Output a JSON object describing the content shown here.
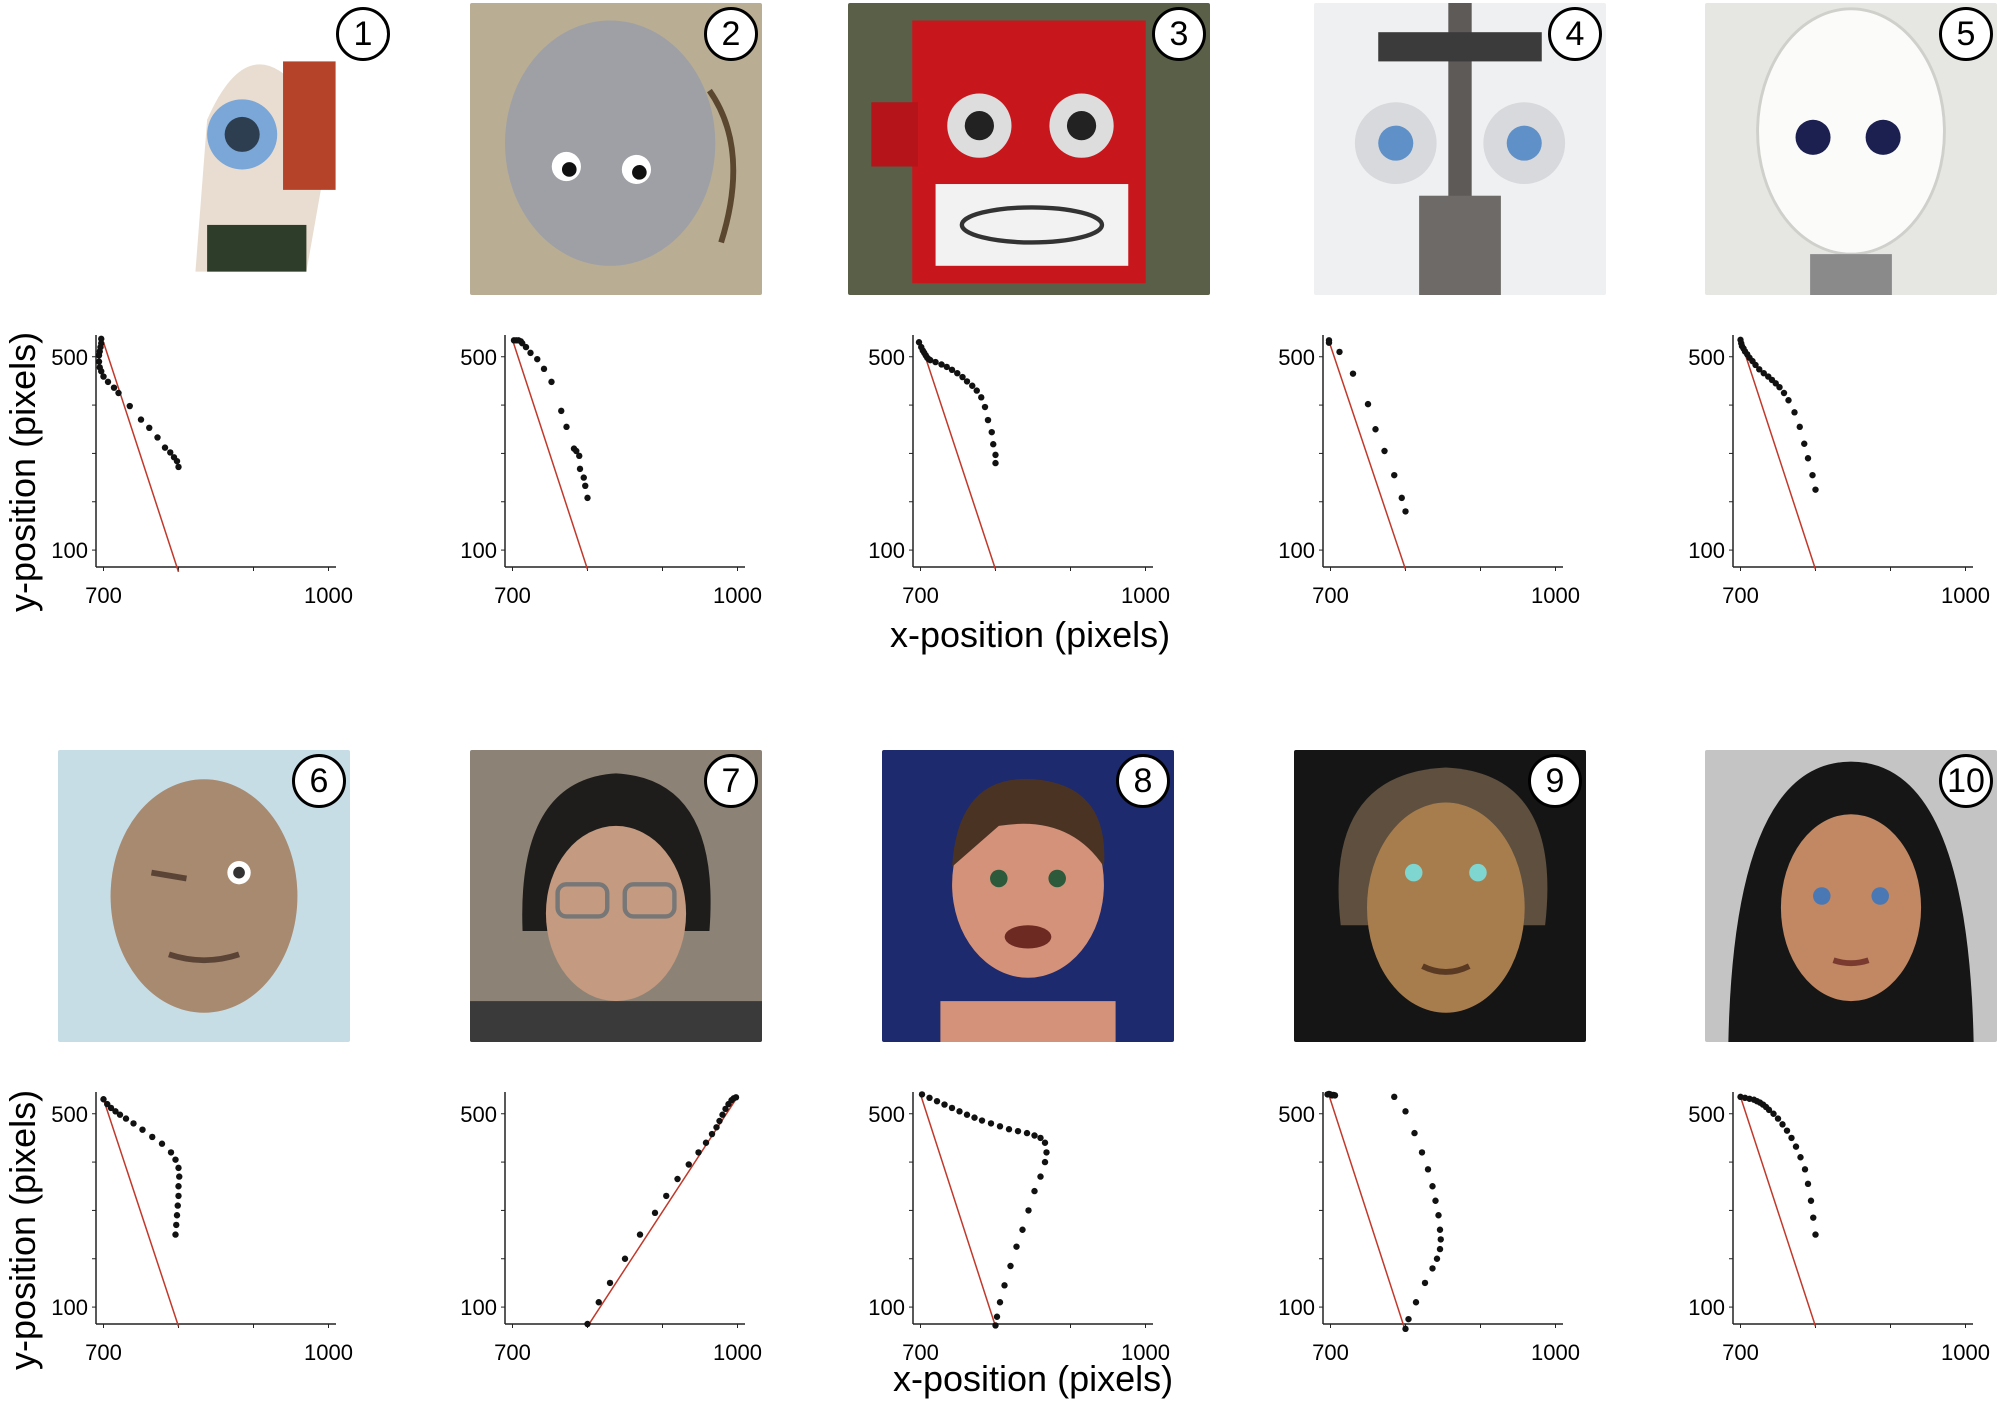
{
  "colors": {
    "points": "#111111",
    "line": "#c0392b",
    "axis": "#222222"
  },
  "axis_titles": {
    "x": "x-position (pixels)",
    "y": "y-position (pixels)"
  },
  "panels": [
    {
      "number": "1",
      "photo": "robot-head-1",
      "bg": "#ffffff"
    },
    {
      "number": "2",
      "photo": "robot-head-2",
      "bg": "#b9ad94"
    },
    {
      "number": "3",
      "photo": "robot-head-3",
      "bg": "#5a6048"
    },
    {
      "number": "4",
      "photo": "robot-head-4",
      "bg": "#eef0f2"
    },
    {
      "number": "5",
      "photo": "robot-head-5",
      "bg": "#e6e6e2"
    },
    {
      "number": "6",
      "photo": "robot-head-6",
      "bg": "#c7dde6"
    },
    {
      "number": "7",
      "photo": "robot-head-7",
      "bg": "#8c8376"
    },
    {
      "number": "8",
      "photo": "robot-head-8",
      "bg": "#1d2a6e"
    },
    {
      "number": "9",
      "photo": "robot-head-9",
      "bg": "#151515"
    },
    {
      "number": "10",
      "photo": "robot-head-10",
      "bg": "#c4c4c4"
    }
  ],
  "chart_data": [
    {
      "type": "scatter",
      "panel": "1",
      "xlim": [
        690,
        1010
      ],
      "ylim": [
        65,
        545
      ],
      "xticks": [
        700,
        1000
      ],
      "yticks": [
        100,
        500
      ],
      "line": {
        "x": [
          700,
          800
        ],
        "y": [
          530,
          55
        ]
      },
      "points": {
        "x": [
          697,
          697,
          696,
          695,
          694,
          694,
          695,
          697,
          700,
          706,
          714,
          720,
          735,
          750,
          761,
          772,
          782,
          789,
          794,
          798,
          800
        ],
        "y": [
          537,
          528,
          520,
          511,
          503,
          490,
          478,
          470,
          459,
          448,
          436,
          425,
          398,
          370,
          353,
          333,
          312,
          302,
          292,
          284,
          272
        ]
      }
    },
    {
      "type": "scatter",
      "panel": "2",
      "xlim": [
        690,
        1010
      ],
      "ylim": [
        65,
        545
      ],
      "xticks": [
        700,
        1000
      ],
      "yticks": [
        100,
        500
      ],
      "line": {
        "x": [
          700,
          800
        ],
        "y": [
          535,
          60
        ]
      },
      "points": {
        "x": [
          702,
          705,
          708,
          711,
          713,
          718,
          724,
          733,
          742,
          752,
          765,
          772,
          782,
          785,
          789,
          790,
          795,
          797,
          800
        ],
        "y": [
          534,
          534,
          534,
          532,
          528,
          520,
          508,
          495,
          475,
          448,
          388,
          355,
          310,
          305,
          295,
          268,
          250,
          233,
          208
        ]
      }
    },
    {
      "type": "scatter",
      "panel": "3",
      "xlim": [
        690,
        1010
      ],
      "ylim": [
        65,
        545
      ],
      "xticks": [
        700,
        1000
      ],
      "yticks": [
        100,
        500
      ],
      "line": {
        "x": [
          700,
          800
        ],
        "y": [
          530,
          60
        ]
      },
      "points": {
        "x": [
          698,
          701,
          703,
          705,
          707,
          709,
          711,
          713,
          720,
          728,
          735,
          742,
          749,
          756,
          762,
          769,
          775,
          781,
          786,
          790,
          795,
          797,
          800,
          800
        ],
        "y": [
          530,
          520,
          513,
          508,
          503,
          498,
          495,
          493,
          489,
          484,
          479,
          473,
          466,
          458,
          449,
          440,
          430,
          416,
          396,
          369,
          344,
          319,
          297,
          280
        ]
      }
    },
    {
      "type": "scatter",
      "panel": "4",
      "xlim": [
        690,
        1010
      ],
      "ylim": [
        65,
        545
      ],
      "xticks": [
        700,
        1000
      ],
      "yticks": [
        100,
        500
      ],
      "line": {
        "x": [
          698,
          800
        ],
        "y": [
          532,
          60
        ]
      },
      "points": {
        "x": [
          698,
          698,
          712,
          730,
          750,
          760,
          772,
          785,
          795,
          800
        ],
        "y": [
          534,
          529,
          510,
          465,
          402,
          350,
          305,
          255,
          208,
          180
        ]
      }
    },
    {
      "type": "scatter",
      "panel": "5",
      "xlim": [
        690,
        1010
      ],
      "ylim": [
        65,
        545
      ],
      "xticks": [
        700,
        1000
      ],
      "yticks": [
        100,
        500
      ],
      "line": {
        "x": [
          700,
          800
        ],
        "y": [
          535,
          60
        ]
      },
      "points": {
        "x": [
          700,
          701,
          702,
          704,
          706,
          709,
          712,
          716,
          720,
          725,
          731,
          737,
          742,
          747,
          752,
          758,
          764,
          772,
          779,
          785,
          790,
          796,
          800
        ],
        "y": [
          535,
          528,
          522,
          517,
          511,
          505,
          498,
          491,
          483,
          474,
          466,
          459,
          452,
          445,
          437,
          425,
          410,
          385,
          355,
          320,
          290,
          255,
          225
        ]
      }
    },
    {
      "type": "scatter",
      "panel": "6",
      "xlim": [
        690,
        1010
      ],
      "ylim": [
        65,
        545
      ],
      "xticks": [
        700,
        1000
      ],
      "yticks": [
        100,
        500
      ],
      "line": {
        "x": [
          700,
          800
        ],
        "y": [
          530,
          60
        ]
      },
      "points": {
        "x": [
          700,
          705,
          710,
          716,
          722,
          730,
          740,
          752,
          765,
          778,
          790,
          796,
          800,
          801,
          800,
          800,
          799,
          798,
          797,
          796
        ],
        "y": [
          530,
          520,
          512,
          505,
          498,
          490,
          480,
          467,
          452,
          438,
          420,
          405,
          388,
          370,
          350,
          330,
          310,
          290,
          270,
          250
        ]
      }
    },
    {
      "type": "scatter",
      "panel": "7",
      "xlim": [
        690,
        1010
      ],
      "ylim": [
        65,
        545
      ],
      "xticks": [
        700,
        1000
      ],
      "yticks": [
        100,
        500
      ],
      "line": {
        "x": [
          800,
          1000
        ],
        "y": [
          60,
          535
        ]
      },
      "points": {
        "x": [
          800,
          815,
          830,
          850,
          870,
          890,
          905,
          920,
          935,
          948,
          958,
          966,
          972,
          976,
          980,
          984,
          988,
          992,
          995,
          998
        ],
        "y": [
          65,
          110,
          150,
          200,
          250,
          295,
          330,
          365,
          395,
          420,
          440,
          458,
          472,
          485,
          498,
          510,
          520,
          528,
          532,
          534
        ]
      }
    },
    {
      "type": "scatter",
      "panel": "8",
      "xlim": [
        690,
        1010
      ],
      "ylim": [
        65,
        545
      ],
      "xticks": [
        700,
        1000
      ],
      "yticks": [
        100,
        500
      ],
      "line": {
        "x": [
          700,
          800
        ],
        "y": [
          540,
          60
        ]
      },
      "points": {
        "x": [
          702,
          712,
          722,
          732,
          742,
          752,
          762,
          772,
          782,
          794,
          806,
          818,
          830,
          842,
          852,
          860,
          866,
          868,
          866,
          860,
          852,
          844,
          836,
          828,
          820,
          812,
          806,
          802,
          800
        ],
        "y": [
          540,
          533,
          526,
          519,
          512,
          505,
          498,
          492,
          486,
          480,
          474,
          468,
          464,
          460,
          455,
          450,
          440,
          420,
          400,
          370,
          340,
          300,
          260,
          225,
          185,
          145,
          110,
          80,
          62
        ]
      }
    },
    {
      "type": "scatter",
      "panel": "9",
      "xlim": [
        690,
        1010
      ],
      "ylim": [
        65,
        545
      ],
      "xticks": [
        700,
        1000
      ],
      "yticks": [
        100,
        500
      ],
      "line": {
        "x": [
          698,
          800
        ],
        "y": [
          538,
          50
        ]
      },
      "points": {
        "x": [
          696,
          698,
          700,
          702,
          704,
          706,
          785,
          800,
          812,
          822,
          830,
          836,
          840,
          844,
          846,
          847,
          846,
          842,
          836,
          826,
          814,
          804,
          800
        ],
        "y": [
          540,
          541,
          540,
          538,
          539,
          538,
          535,
          505,
          460,
          420,
          385,
          350,
          320,
          290,
          260,
          240,
          220,
          200,
          180,
          150,
          110,
          75,
          55
        ]
      }
    },
    {
      "type": "scatter",
      "panel": "10",
      "xlim": [
        690,
        1010
      ],
      "ylim": [
        65,
        545
      ],
      "xticks": [
        700,
        1000
      ],
      "yticks": [
        100,
        500
      ],
      "line": {
        "x": [
          700,
          800
        ],
        "y": [
          535,
          60
        ]
      },
      "points": {
        "x": [
          700,
          706,
          712,
          718,
          722,
          726,
          730,
          734,
          738,
          744,
          750,
          756,
          762,
          768,
          774,
          780,
          786,
          790,
          794,
          797,
          800
        ],
        "y": [
          535,
          533,
          531,
          529,
          526,
          523,
          519,
          514,
          508,
          500,
          490,
          478,
          465,
          450,
          432,
          410,
          385,
          355,
          320,
          285,
          250
        ]
      }
    }
  ]
}
